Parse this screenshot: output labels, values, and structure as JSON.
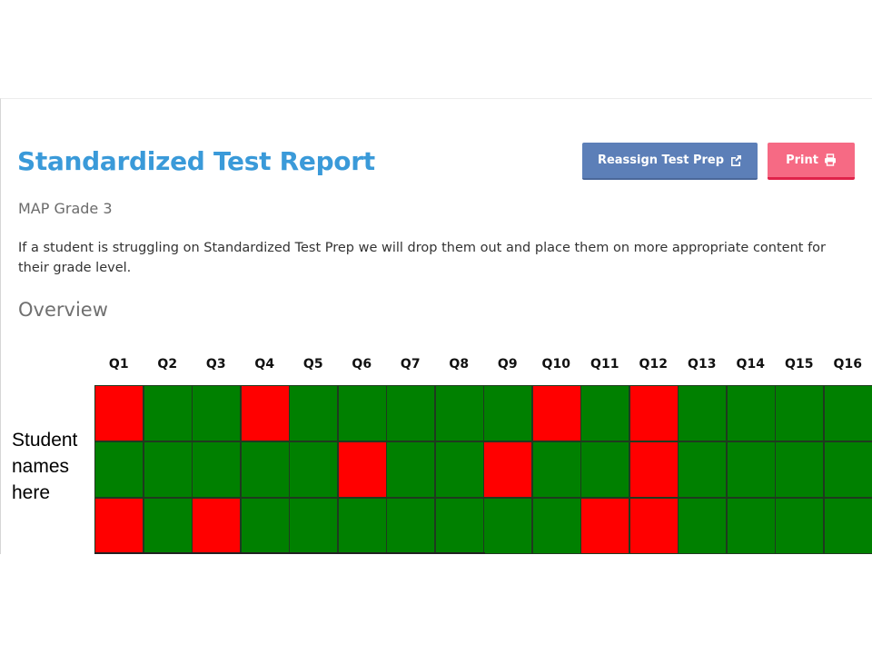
{
  "header": {
    "title": "Standardized Test Report",
    "reassign_label": "Reassign Test Prep",
    "reassign_icon": "external-link-icon",
    "print_label": "Print",
    "print_icon": "printer-icon"
  },
  "subtitle": "MAP Grade 3",
  "description": "If a student is struggling on Standardized Test Prep we will drop them out and place them on more appropriate content for their grade level.",
  "overview_heading": "Overview",
  "student_label": "Student names here",
  "colors": {
    "title": "#3a9ad9",
    "reassign_button": "#5c7fb8",
    "print_button": "#f66a84",
    "correct": "#008000",
    "incorrect": "#ff0000"
  },
  "questions": [
    "Q1",
    "Q2",
    "Q3",
    "Q4",
    "Q5",
    "Q6",
    "Q7",
    "Q8",
    "Q9",
    "Q10",
    "Q11",
    "Q12",
    "Q13",
    "Q14",
    "Q15",
    "Q16"
  ],
  "results": [
    [
      "incorrect",
      "correct",
      "correct",
      "incorrect",
      "correct",
      "correct",
      "correct",
      "correct",
      "correct",
      "incorrect",
      "correct",
      "incorrect",
      "correct",
      "correct",
      "correct",
      "correct"
    ],
    [
      "correct",
      "correct",
      "correct",
      "correct",
      "correct",
      "incorrect",
      "correct",
      "correct",
      "incorrect",
      "correct",
      "correct",
      "incorrect",
      "correct",
      "correct",
      "correct",
      "correct"
    ],
    [
      "incorrect",
      "correct",
      "incorrect",
      "correct",
      "correct",
      "correct",
      "correct",
      "correct",
      "correct",
      "correct",
      "incorrect",
      "incorrect",
      "correct",
      "correct",
      "correct",
      "correct"
    ]
  ]
}
